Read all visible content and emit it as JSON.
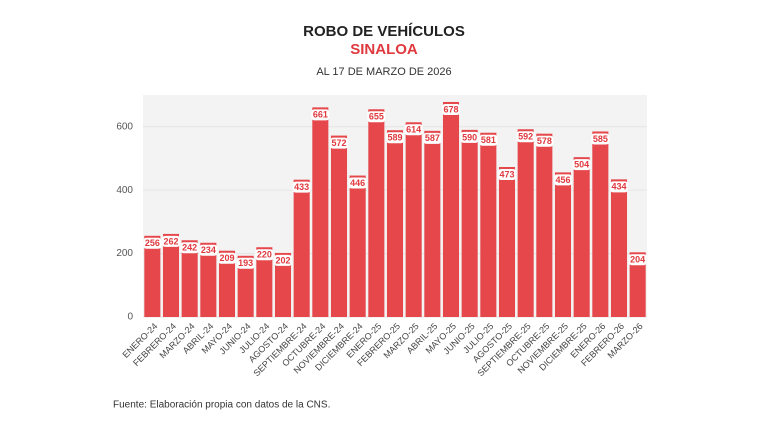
{
  "chart_data": {
    "type": "bar",
    "title": "ROBO DE VEHÍCULOS",
    "subtitle": "SINALOA",
    "date_note": "AL 17 DE MARZO DE 2026",
    "source": "Fuente: Elaboración propia con datos de la CNS.",
    "categories": [
      "ENERO-24",
      "FEBRERO-24",
      "MARZO-24",
      "ABRIL-24",
      "MAYO-24",
      "JUNIO-24",
      "JULIO-24",
      "AGOSTO-24",
      "SEPTIEMBRE-24",
      "OCTUBRE-24",
      "NOVIEMBRE-24",
      "DICIEMBRE-24",
      "ENERO-25",
      "FEBRERO-25",
      "MARZO-25",
      "ABRIL-25",
      "MAYO-25",
      "JUNIO-25",
      "JULIO-25",
      "AGOSTO-25",
      "SEPTIEMBRE-25",
      "OCTUBRE-25",
      "NOVIEMBRE-25",
      "DICIEMBRE-25",
      "ENERO-26",
      "FEBRERO-26",
      "MARZO-26"
    ],
    "values": [
      256,
      262,
      242,
      234,
      209,
      193,
      220,
      202,
      433,
      661,
      572,
      446,
      655,
      589,
      614,
      587,
      678,
      590,
      581,
      473,
      592,
      578,
      456,
      504,
      585,
      434,
      204
    ],
    "color": "#e5474b",
    "ylim": [
      0,
      700
    ],
    "yticks": [
      0,
      200,
      400,
      600
    ],
    "grid": true
  }
}
